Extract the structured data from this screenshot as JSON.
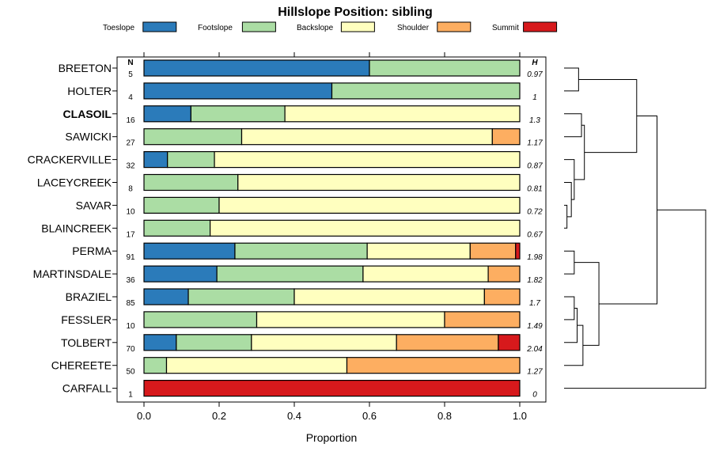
{
  "chart_data": {
    "type": "bar",
    "stacked": "horizontal-proportion",
    "title": "Hillslope Position: sibling",
    "xlabel": "Proportion",
    "xlim": [
      0,
      1
    ],
    "x_ticks": [
      "0.0",
      "0.2",
      "0.4",
      "0.6",
      "0.8",
      "1.0"
    ],
    "n_header": "N",
    "h_header": "H",
    "categories": [
      "Toeslope",
      "Footslope",
      "Backslope",
      "Shoulder",
      "Summit"
    ],
    "colors": {
      "Toeslope": "#2b7bba",
      "Footslope": "#abdda4",
      "Backslope": "#ffffbf",
      "Shoulder": "#fdae61",
      "Summit": "#d7191c"
    },
    "rows": [
      {
        "name": "BREETON",
        "bold": false,
        "n": "5",
        "h": "0.97",
        "values": [
          0.6,
          0.4,
          0,
          0,
          0
        ]
      },
      {
        "name": "HOLTER",
        "bold": false,
        "n": "4",
        "h": "1",
        "values": [
          0.5,
          0.5,
          0,
          0,
          0
        ]
      },
      {
        "name": "CLASOIL",
        "bold": true,
        "n": "16",
        "h": "1.3",
        "values": [
          0.125,
          0.25,
          0.625,
          0,
          0
        ]
      },
      {
        "name": "SAWICKI",
        "bold": false,
        "n": "27",
        "h": "1.17",
        "values": [
          0,
          0.26,
          0.667,
          0.073,
          0
        ]
      },
      {
        "name": "CRACKERVILLE",
        "bold": false,
        "n": "32",
        "h": "0.87",
        "values": [
          0.0625,
          0.125,
          0.8125,
          0,
          0
        ]
      },
      {
        "name": "LACEYCREEK",
        "bold": false,
        "n": "8",
        "h": "0.81",
        "values": [
          0,
          0.25,
          0.75,
          0,
          0
        ]
      },
      {
        "name": "SAVAR",
        "bold": false,
        "n": "10",
        "h": "0.72",
        "values": [
          0,
          0.2,
          0.8,
          0,
          0
        ]
      },
      {
        "name": "BLAINCREEK",
        "bold": false,
        "n": "17",
        "h": "0.67",
        "values": [
          0,
          0.176,
          0.824,
          0,
          0
        ]
      },
      {
        "name": "PERMA",
        "bold": false,
        "n": "91",
        "h": "1.98",
        "values": [
          0.242,
          0.352,
          0.274,
          0.121,
          0.011
        ]
      },
      {
        "name": "MARTINSDALE",
        "bold": false,
        "n": "36",
        "h": "1.82",
        "values": [
          0.194,
          0.389,
          0.333,
          0.084,
          0
        ]
      },
      {
        "name": "BRAZIEL",
        "bold": false,
        "n": "85",
        "h": "1.7",
        "values": [
          0.118,
          0.282,
          0.506,
          0.094,
          0
        ]
      },
      {
        "name": "FESSLER",
        "bold": false,
        "n": "10",
        "h": "1.49",
        "values": [
          0,
          0.3,
          0.5,
          0.2,
          0
        ]
      },
      {
        "name": "TOLBERT",
        "bold": false,
        "n": "70",
        "h": "2.04",
        "values": [
          0.086,
          0.2,
          0.386,
          0.271,
          0.057
        ]
      },
      {
        "name": "CHEREETE",
        "bold": false,
        "n": "50",
        "h": "1.27",
        "values": [
          0,
          0.06,
          0.48,
          0.46,
          0
        ]
      },
      {
        "name": "CARFALL",
        "bold": false,
        "n": "1",
        "h": "0",
        "values": [
          0,
          0,
          0,
          0,
          1.0
        ]
      }
    ],
    "dendrogram": {
      "order": [
        "BREETON",
        "HOLTER",
        "CLASOIL",
        "SAWICKI",
        "CRACKERVILLE",
        "LACEYCREEK",
        "SAVAR",
        "BLAINCREEK",
        "PERMA",
        "MARTINSDALE",
        "BRAZIEL",
        "FESSLER",
        "TOLBERT",
        "CHEREETE",
        "CARFALL"
      ],
      "merges": [
        {
          "a": 6,
          "b": 7,
          "height": 0.04
        },
        {
          "a": 5,
          "b": "m0",
          "height": 0.1
        },
        {
          "a": 4,
          "b": "m1",
          "height": 0.14
        },
        {
          "a": 2,
          "b": 3,
          "height": 0.24
        },
        {
          "a": "m3",
          "b": "m2",
          "height": 0.28
        },
        {
          "a": 0,
          "b": 1,
          "height": 0.2
        },
        {
          "a": "m5",
          "b": "m4",
          "height": 1.0
        },
        {
          "a": 8,
          "b": 9,
          "height": 0.14
        },
        {
          "a": 10,
          "b": 11,
          "height": 0.14
        },
        {
          "a": "m8",
          "b": 12,
          "height": 0.18
        },
        {
          "a": "m9",
          "b": 13,
          "height": 0.26
        },
        {
          "a": "m7",
          "b": "m10",
          "height": 0.48
        },
        {
          "a": "m6",
          "b": "m11",
          "height": 1.28
        },
        {
          "a": "m12",
          "b": 14,
          "height": 1.95
        }
      ]
    }
  }
}
